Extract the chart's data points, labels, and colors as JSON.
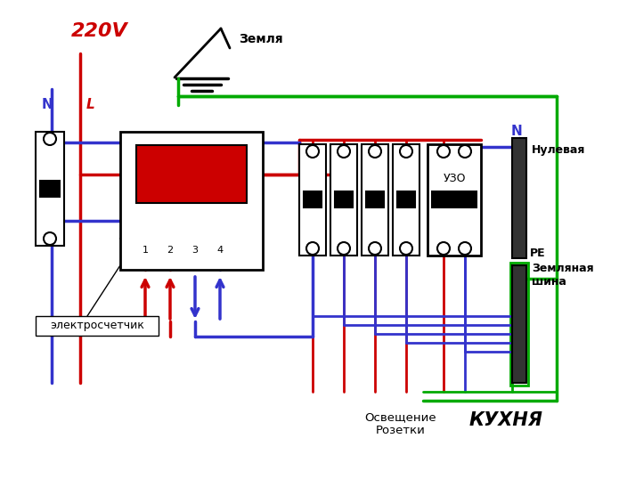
{
  "bg_color": "#ffffff",
  "text_220V": "220V",
  "text_N_left": "N",
  "text_L": "L",
  "text_zemlya": "Земля",
  "text_electrometer": "электросчетчик",
  "text_N_right": "N",
  "text_nulevaya": "Нулевая",
  "text_zemlyanya_shina": "Земляная\nшина",
  "text_PE": "PE",
  "text_uzo": "УЗО",
  "text_osveshenie": "Освещение\nРозетки",
  "text_kukhnya": "КУХНЯ",
  "color_red": "#cc0000",
  "color_blue": "#3333cc",
  "color_green": "#00aa00",
  "color_black": "#000000"
}
